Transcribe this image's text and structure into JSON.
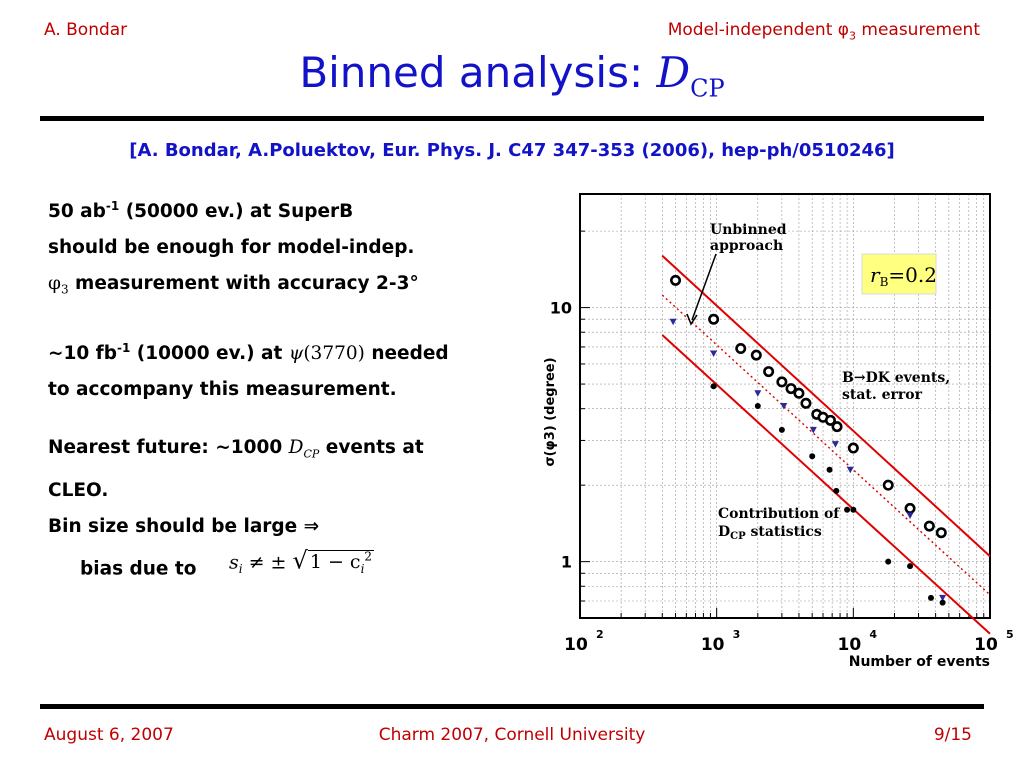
{
  "header": {
    "author": "A. Bondar",
    "talk_title": "Model-independent φ3 measurement"
  },
  "slide": {
    "title_text": "Binned analysis: ",
    "title_symbol": "D",
    "title_sub": "CP",
    "reference": "[A. Bondar, A.Poluektov, Eur. Phys. J. C47 347-353 (2006), hep-ph/0510246]"
  },
  "bullets": {
    "b1_line1_a": "50 ab",
    "b1_line1_sup": "-1",
    "b1_line1_b": " (50000 ev.) at SuperB",
    "b1_line2": "should be enough for model-indep.",
    "b1_line3_phi": "φ",
    "b1_line3_sub": "3",
    "b1_line3_b": " measurement with accuracy 2-3°",
    "b2_line1_a": "~10 fb",
    "b2_line1_sup": "-1",
    "b2_line1_b": " (10000 ev.) at ",
    "b2_psi": "ψ",
    "b2_psi_mass": "(3770)",
    "b2_line1_c": " needed",
    "b2_line2": "to accompany this measurement.",
    "b3_line1_a": "Nearest future: ~1000 ",
    "b3_dcp": "D",
    "b3_dcp_sub": "CP",
    "b3_line1_b": " events at",
    "b3_line2": "CLEO.",
    "b4_line1": "Bin size should be large ⇒",
    "b4_line2": "bias due to",
    "formula_s": "s",
    "formula_i": "i",
    "formula_ops": "≠ ±",
    "formula_root": "1 − c",
    "formula_i2": "i",
    "formula_exp": "2"
  },
  "chart_data": {
    "type": "scatter",
    "xlabel": "Number of events",
    "ylabel": "σ(φ3) (degree)",
    "x_log": true,
    "y_log": true,
    "xlim": [
      100,
      100000
    ],
    "ylim": [
      0.6,
      28
    ],
    "x_ticks": [
      {
        "value": 100,
        "label": "10",
        "exp": "2"
      },
      {
        "value": 1000,
        "label": "10",
        "exp": "3"
      },
      {
        "value": 10000,
        "label": "10",
        "exp": "4"
      },
      {
        "value": 100000,
        "label": "10",
        "exp": "5"
      }
    ],
    "y_ticks": [
      {
        "value": 1,
        "label": "1"
      },
      {
        "value": 10,
        "label": "10"
      }
    ],
    "grid": true,
    "series": [
      {
        "role": "B→DK open circles",
        "marker": "open-circle",
        "color": "#000000",
        "points": [
          [
            500,
            12.8
          ],
          [
            950,
            9.0
          ],
          [
            1500,
            6.9
          ],
          [
            1950,
            6.5
          ],
          [
            2400,
            5.6
          ],
          [
            3000,
            5.1
          ],
          [
            3500,
            4.8
          ],
          [
            4000,
            4.6
          ],
          [
            4500,
            4.2
          ],
          [
            5400,
            3.8
          ],
          [
            6000,
            3.7
          ],
          [
            6800,
            3.6
          ],
          [
            7600,
            3.4
          ],
          [
            10000,
            2.8
          ],
          [
            18000,
            2.0
          ],
          [
            26000,
            1.62
          ],
          [
            36000,
            1.38
          ],
          [
            44000,
            1.3
          ]
        ]
      },
      {
        "role": "Unbinned approach",
        "marker": "triangle",
        "color": "#2a2a9a",
        "points": [
          [
            480,
            8.8
          ],
          [
            950,
            6.6
          ],
          [
            2000,
            4.6
          ],
          [
            3100,
            4.1
          ],
          [
            5100,
            3.3
          ],
          [
            7400,
            2.9
          ],
          [
            9500,
            2.3
          ],
          [
            26000,
            1.52
          ],
          [
            45000,
            0.72
          ]
        ]
      },
      {
        "role": "Contribution of DCP statistics",
        "marker": "dot",
        "color": "#000000",
        "points": [
          [
            950,
            4.9
          ],
          [
            2000,
            4.1
          ],
          [
            3000,
            3.3
          ],
          [
            5000,
            2.6
          ],
          [
            6700,
            2.3
          ],
          [
            7500,
            1.9
          ],
          [
            9000,
            1.6
          ],
          [
            10000,
            1.6
          ],
          [
            18000,
            1.0
          ],
          [
            26000,
            0.96
          ],
          [
            37000,
            0.72
          ],
          [
            45000,
            0.69
          ]
        ]
      }
    ],
    "lines": [
      {
        "style": "solid",
        "color": "#e00000",
        "from": [
          400,
          16.0
        ],
        "to": [
          100000,
          1.05
        ]
      },
      {
        "style": "dotted",
        "color": "#e00000",
        "from": [
          400,
          11.2
        ],
        "to": [
          100000,
          0.74
        ]
      },
      {
        "style": "solid",
        "color": "#e00000",
        "from": [
          400,
          7.8
        ],
        "to": [
          100000,
          0.52
        ]
      }
    ],
    "annotations": {
      "unbinned_1": "Unbinned",
      "unbinned_2": "approach",
      "bdk_1": "B→DK events,",
      "bdk_2": "stat. error",
      "contrib_1": "Contribution of",
      "contrib_2a": "D",
      "contrib_2sub": "CP",
      "contrib_2b": " statistics"
    },
    "rb_box": {
      "symbol": "r",
      "sub": "B",
      "value": "=0.2",
      "background": "#ffff80"
    }
  },
  "footer": {
    "date": "August 6, 2007",
    "event": "Charm 2007, Cornell University",
    "page": "9/15"
  },
  "colors": {
    "accent_red": "#c00000",
    "title_blue": "#1212c8",
    "line_red": "#e00000"
  }
}
